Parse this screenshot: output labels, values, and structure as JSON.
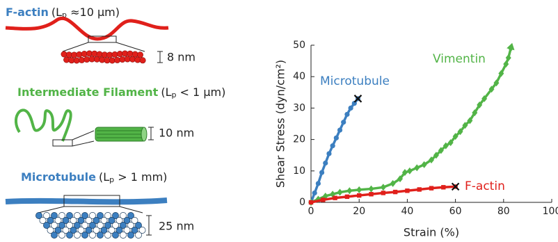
{
  "chart_data": {
    "type": "line",
    "xlabel": "Strain (%)",
    "ylabel": "Shear Stress (dyn/cm²)",
    "xlim": [
      0,
      100
    ],
    "ylim": [
      0,
      50
    ],
    "xticks": [
      0,
      20,
      40,
      60,
      80,
      100
    ],
    "yticks": [
      0,
      10,
      20,
      30,
      40,
      50
    ],
    "series": [
      {
        "name": "Microtubule",
        "color": "#3c7fc0",
        "marker": "circle",
        "x": [
          0,
          1.5,
          3,
          4.5,
          6,
          7.5,
          9,
          10.5,
          12,
          13.5,
          15,
          16.5,
          18,
          19.5
        ],
        "values": [
          0,
          3,
          6,
          9.5,
          12.5,
          15.5,
          18,
          20.5,
          23,
          25.5,
          28,
          30,
          31.5,
          33
        ]
      },
      {
        "name": "Vimentin",
        "color": "#52b447",
        "marker": "diamond",
        "x": [
          0,
          3,
          6,
          9,
          12,
          16,
          20,
          25,
          30,
          34,
          37,
          39,
          41,
          44,
          47,
          50,
          52,
          54,
          56,
          58,
          60,
          62,
          64,
          66,
          68,
          70,
          72,
          75,
          77,
          79,
          81,
          82,
          83
        ],
        "values": [
          0,
          1,
          2,
          2.6,
          3.2,
          3.7,
          4,
          4.3,
          4.8,
          6,
          7.5,
          9.5,
          10,
          11,
          12,
          13.5,
          15,
          16.5,
          18,
          19,
          21,
          22.5,
          24.5,
          26,
          28.5,
          31,
          33,
          36,
          38,
          41,
          44,
          46,
          49
        ]
      },
      {
        "name": "F-actin",
        "color": "#e0201b",
        "marker": "square",
        "x": [
          0,
          5,
          10,
          15,
          20,
          25,
          30,
          35,
          40,
          45,
          50,
          55,
          60
        ],
        "values": [
          0,
          0.8,
          1.4,
          1.8,
          2.2,
          2.6,
          3.0,
          3.3,
          3.7,
          4.1,
          4.5,
          4.8,
          5
        ]
      }
    ]
  },
  "diagram": {
    "f_actin": {
      "name": "F-actin",
      "open": "(L",
      "sub": "p",
      "rest": " ≈10 μm)",
      "scale": "8 nm"
    },
    "intermediate": {
      "name": "Intermediate Filament",
      "open": "(L",
      "sub": "p",
      "rest": " < 1 μm)",
      "scale": "10 nm"
    },
    "microtubule": {
      "name": "Microtubule",
      "open": "(L",
      "sub": "p",
      "rest": " > 1 mm)",
      "scale": "25 nm"
    }
  }
}
